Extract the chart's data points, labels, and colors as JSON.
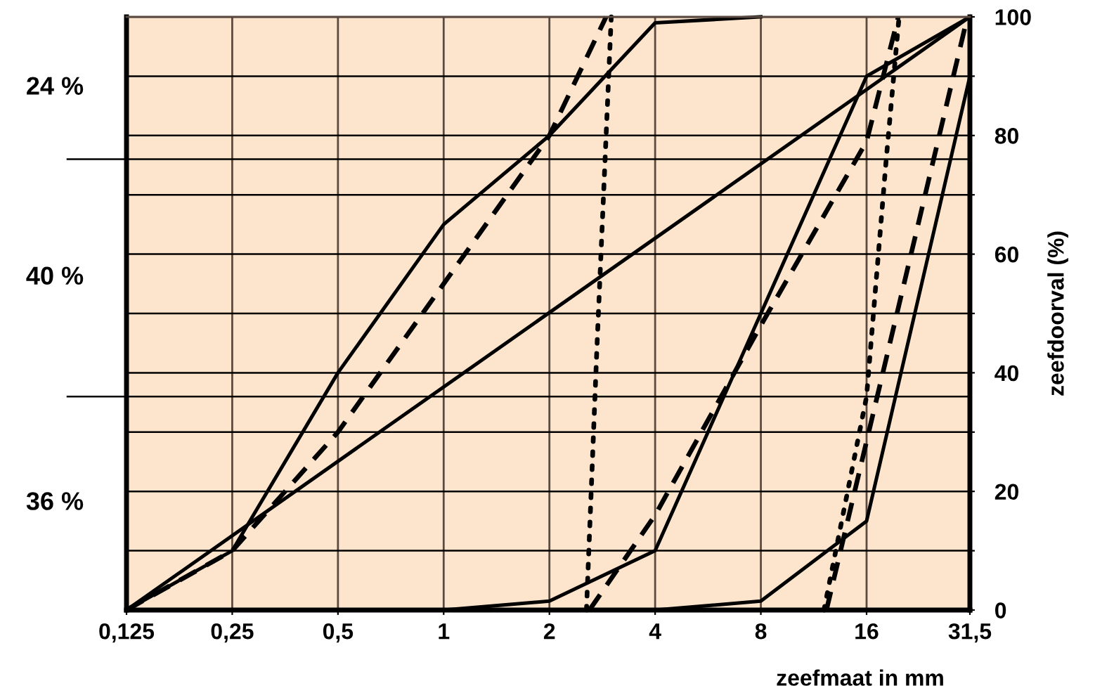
{
  "chart_data": {
    "type": "line",
    "xlabel": "zeefmaat in mm",
    "ylabel": "zeefdoorval (%)",
    "xlim": [
      0.125,
      31.5
    ],
    "xticks": [
      {
        "value": 0.125,
        "label": "0,125"
      },
      {
        "value": 0.25,
        "label": "0,25"
      },
      {
        "value": 0.5,
        "label": "0,5"
      },
      1,
      2,
      4,
      8,
      16,
      {
        "value": 31.5,
        "label": "31,5"
      }
    ],
    "ylim": [
      0,
      100
    ],
    "yticks": [
      0,
      {
        "value": 10,
        "label": null
      },
      20,
      {
        "value": 30,
        "label": null
      },
      40,
      {
        "value": 50,
        "label": null
      },
      60,
      {
        "value": 70,
        "label": null
      },
      80,
      {
        "value": 90,
        "label": null
      },
      100
    ],
    "grid": true,
    "marker": "none",
    "series": [
      {
        "color": "#000000",
        "line_style": "solid",
        "x": [
          0.125,
          0.25,
          0.5,
          1,
          2,
          4,
          8
        ],
        "values": [
          0,
          10,
          40,
          65,
          80,
          99,
          100
        ]
      },
      {
        "color": "#000000",
        "line_style": "dashed",
        "x": [
          0.125,
          0.25,
          0.5,
          1,
          2,
          2.9
        ],
        "values": [
          0,
          10,
          30,
          55,
          80,
          100
        ]
      },
      {
        "color": "#000000",
        "line_style": "dotted",
        "x": [
          2.55,
          2.73,
          3.0
        ],
        "values": [
          0,
          44,
          100
        ]
      },
      {
        "color": "#000000",
        "line_style": "solid",
        "x": [
          0.125,
          31.5
        ],
        "values": [
          0,
          100
        ]
      },
      {
        "color": "#000000",
        "line_style": "solid",
        "x": [
          1,
          2,
          4,
          8,
          16,
          31.5
        ],
        "values": [
          0,
          1.5,
          10,
          50,
          90,
          100
        ]
      },
      {
        "color": "#000000",
        "line_style": "dashed",
        "x": [
          2.6,
          4,
          8,
          16,
          19.7
        ],
        "values": [
          0,
          16,
          48,
          79,
          100
        ]
      },
      {
        "color": "#000000",
        "line_style": "dotted",
        "x": [
          12.1,
          16,
          18.2,
          19.8
        ],
        "values": [
          0,
          36,
          76,
          100
        ]
      },
      {
        "color": "#000000",
        "line_style": "dashed",
        "x": [
          12.3,
          31
        ],
        "values": [
          0,
          100
        ]
      },
      {
        "color": "#000000",
        "line_style": "solid",
        "x": [
          4,
          8,
          16,
          31.5
        ],
        "values": [
          0,
          1.5,
          15,
          90
        ]
      }
    ],
    "log": "x",
    "ref_lines": [
      {
        "axis": "y",
        "value": 36
      },
      {
        "axis": "y",
        "value": 76
      }
    ],
    "annotations": [
      "24 %",
      "40 %",
      "36 %"
    ]
  }
}
